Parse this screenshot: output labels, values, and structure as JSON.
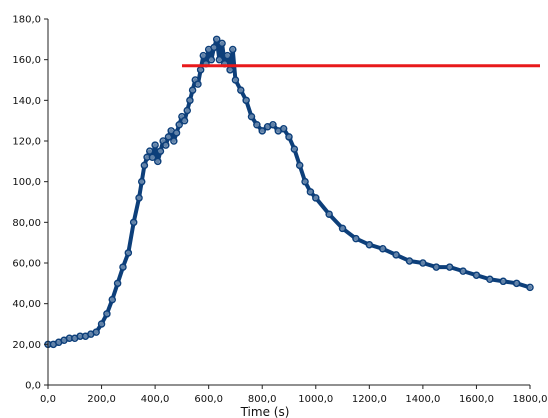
{
  "chart_data": {
    "type": "line",
    "title": "",
    "xlabel": "Time (s)",
    "ylabel": "",
    "xlim": [
      0,
      1800
    ],
    "ylim": [
      0,
      180
    ],
    "x_ticks": [
      0,
      200,
      400,
      600,
      800,
      1000,
      1200,
      1400,
      1600,
      1800
    ],
    "y_ticks": [
      0,
      20,
      40,
      60,
      80,
      100,
      120,
      140,
      160,
      180
    ],
    "x_tick_labels": [
      "0,0",
      "200,0",
      "400,0",
      "600,0",
      "800,0",
      "1000,0",
      "1200,0",
      "1400,0",
      "1600,0",
      "1800,0"
    ],
    "y_tick_labels": [
      "0,0",
      "20,00",
      "40,00",
      "60,00",
      "80,00",
      "100,0",
      "120,0",
      "140,0",
      "160,0",
      "180,0"
    ],
    "grid": false,
    "legend": "none",
    "series": [
      {
        "color": "#0d3f7a",
        "marker": "circle",
        "x": [
          0,
          20,
          40,
          60,
          80,
          100,
          120,
          140,
          160,
          180,
          200,
          220,
          240,
          260,
          280,
          300,
          320,
          340,
          350,
          360,
          370,
          380,
          390,
          400,
          410,
          420,
          430,
          440,
          450,
          460,
          470,
          480,
          490,
          500,
          510,
          520,
          530,
          540,
          550,
          560,
          570,
          580,
          590,
          600,
          610,
          620,
          630,
          640,
          650,
          660,
          670,
          680,
          690,
          700,
          720,
          740,
          760,
          780,
          800,
          820,
          840,
          860,
          880,
          900,
          920,
          940,
          960,
          980,
          1000,
          1050,
          1100,
          1150,
          1200,
          1250,
          1300,
          1350,
          1400,
          1450,
          1500,
          1550,
          1600,
          1650,
          1700,
          1750,
          1800
        ],
        "y": [
          20,
          20,
          21,
          22,
          23,
          23,
          24,
          24,
          25,
          26,
          30,
          35,
          42,
          50,
          58,
          65,
          80,
          92,
          100,
          108,
          112,
          115,
          112,
          118,
          110,
          115,
          120,
          118,
          122,
          125,
          120,
          124,
          128,
          132,
          130,
          135,
          140,
          145,
          150,
          148,
          155,
          162,
          158,
          165,
          160,
          166,
          170,
          160,
          168,
          158,
          162,
          155,
          165,
          150,
          145,
          140,
          132,
          128,
          125,
          127,
          128,
          125,
          126,
          122,
          116,
          108,
          100,
          95,
          92,
          84,
          77,
          72,
          69,
          67,
          64,
          61,
          60,
          58,
          58,
          56,
          54,
          52,
          51,
          50,
          48
        ]
      }
    ],
    "reference_line": {
      "y": 157,
      "color": "#e8191b"
    }
  }
}
